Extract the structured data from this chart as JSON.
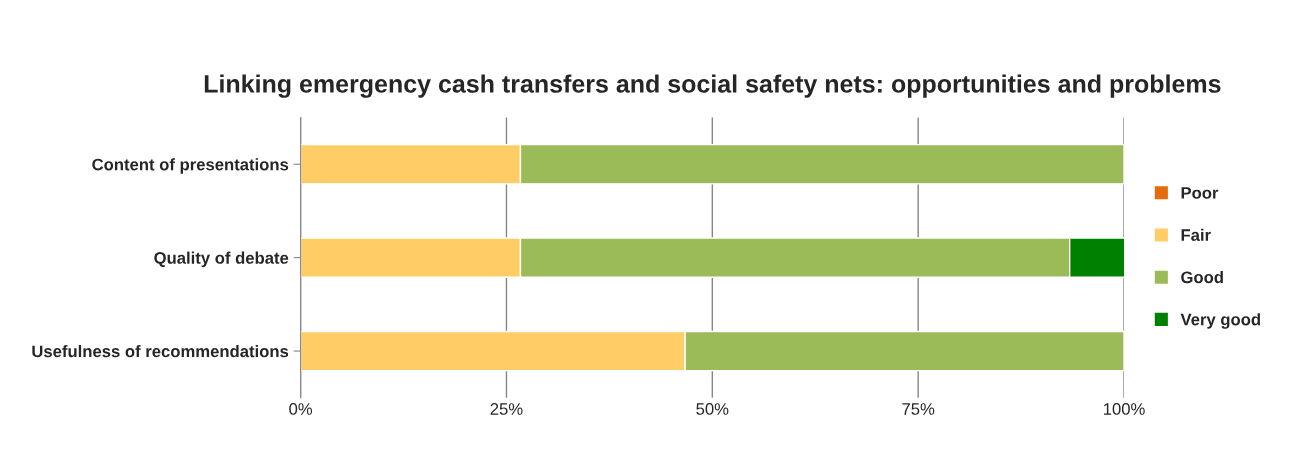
{
  "chart_data": {
    "type": "bar",
    "orientation": "horizontal",
    "stacked": true,
    "title": "Linking emergency cash transfers and social safety nets: opportunities and problems",
    "categories": [
      "Content of presentations",
      "Quality of debate",
      "Usefulness of recommendations"
    ],
    "series": [
      {
        "name": "Poor",
        "color": "#e46c0a",
        "values": [
          0,
          0,
          0
        ]
      },
      {
        "name": "Fair",
        "color": "#ffcc66",
        "values": [
          26.7,
          26.7,
          46.7
        ]
      },
      {
        "name": "Good",
        "color": "#9bbb59",
        "values": [
          73.3,
          66.7,
          53.3
        ]
      },
      {
        "name": "Very good",
        "color": "#008000",
        "values": [
          0,
          6.7,
          0
        ]
      }
    ],
    "xlim": [
      0,
      100
    ],
    "xticks": [
      {
        "value": 0,
        "label": "0%"
      },
      {
        "value": 25,
        "label": "25%"
      },
      {
        "value": 50,
        "label": "50%"
      },
      {
        "value": 75,
        "label": "75%"
      },
      {
        "value": 100,
        "label": "100%"
      }
    ],
    "grid": "x",
    "legend": "right"
  }
}
